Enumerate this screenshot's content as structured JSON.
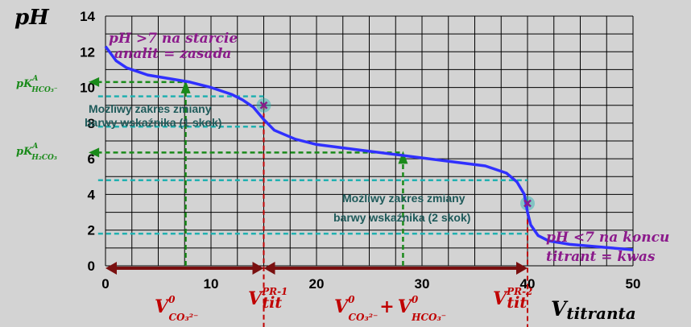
{
  "chart_data": {
    "type": "line",
    "title": "",
    "xlabel": "V",
    "xlabel_sub": "titranta",
    "ylabel": "pH",
    "xlim": [
      0,
      50
    ],
    "ylim": [
      0,
      14
    ],
    "x_ticks": [
      "0",
      "10",
      "20",
      "30",
      "40",
      "50"
    ],
    "y_ticks": [
      "0",
      "2",
      "4",
      "6",
      "8",
      "10",
      "12",
      "14"
    ],
    "grid": true,
    "series": [
      {
        "name": "",
        "color": "#3030ff",
        "x": [
          0,
          1,
          2,
          4,
          6,
          8,
          10,
          12,
          13,
          14,
          15,
          16,
          18,
          20,
          24,
          28,
          32,
          36,
          38,
          39,
          39.7,
          40,
          40.3,
          41,
          42,
          44,
          46,
          48,
          50
        ],
        "y": [
          12.3,
          11.5,
          11.1,
          10.7,
          10.5,
          10.3,
          10.0,
          9.6,
          9.3,
          8.9,
          8.2,
          7.6,
          7.1,
          6.8,
          6.5,
          6.2,
          5.9,
          5.6,
          5.2,
          4.7,
          4.0,
          3.0,
          2.3,
          1.7,
          1.4,
          1.2,
          1.1,
          1.0,
          0.9
        ]
      }
    ],
    "equivalence_points": [
      {
        "x": 15,
        "y": 9.0
      },
      {
        "x": 40,
        "y": 3.5
      }
    ],
    "pk_levels": [
      {
        "label": "pK",
        "sup": "A",
        "sub": "HCO₃⁻",
        "y": 10.3,
        "x": 7.6
      },
      {
        "label": "pK",
        "sup": "A",
        "sub": "H₂CO₃",
        "y": 6.35,
        "x": 28.2
      }
    ],
    "indicator_ranges": [
      {
        "y_low": 7.8,
        "y_high": 9.5,
        "x_end": 15,
        "text": [
          "Możliwy  zakres zmiany",
          "barwy wskaźnika  (1 skok)"
        ]
      },
      {
        "y_low": 1.8,
        "y_high": 4.8,
        "x_end": 40,
        "text": [
          "Możliwy  zakres zmiany",
          "barwy wskaźnika  (2 skok)"
        ]
      }
    ],
    "annotations": {
      "start": [
        "pH >7 na starcie",
        "analit = zasada"
      ],
      "end": [
        "pH <7 na koncu",
        "titrant = kwas"
      ],
      "v1_main": "V",
      "v1_sup": "0",
      "v1_sub": "CO₃²⁻",
      "v_eq1_main": "V",
      "v_eq1_sup": "PR-1",
      "v_eq1_sub": "tit",
      "v2_main_a": "V",
      "v2_sup_a": "0",
      "v2_sub_a": "CO₃²⁻",
      "v2_plus": "+",
      "v2_main_b": "V",
      "v2_sup_b": "0",
      "v2_sub_b": "HCO₃⁻",
      "v_eq2_main": "V",
      "v_eq2_sup": "PR-2",
      "v_eq2_sub": "tit"
    },
    "colors": {
      "curve": "#3030ff",
      "green": "#1a8a1a",
      "red": "#c00000",
      "dark_red": "#7a1010",
      "teal": "#20b0b0",
      "purple": "#8b1a8b"
    }
  }
}
